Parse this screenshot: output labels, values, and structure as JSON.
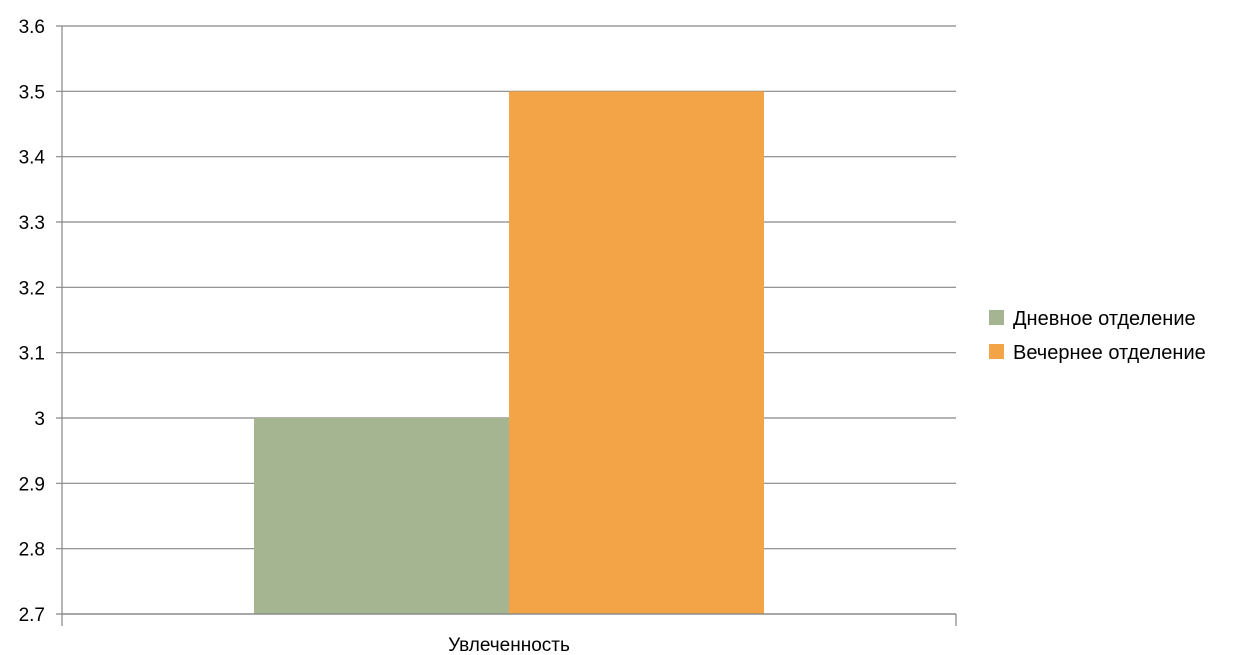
{
  "chart_data": {
    "type": "bar",
    "categories": [
      "Увлеченность"
    ],
    "series": [
      {
        "name": "Дневное отделение",
        "values": [
          3.0
        ],
        "color": "#a5b592"
      },
      {
        "name": "Вечернее отделение",
        "values": [
          3.5
        ],
        "color": "#f3a447"
      }
    ],
    "ylim": [
      2.7,
      3.6
    ],
    "yticks": [
      "2.7",
      "2.8",
      "2.9",
      "3",
      "3.1",
      "3.2",
      "3.3",
      "3.4",
      "3.5",
      "3.6"
    ],
    "title": "",
    "xlabel": "",
    "ylabel": "",
    "grid": true,
    "legend": "right"
  }
}
